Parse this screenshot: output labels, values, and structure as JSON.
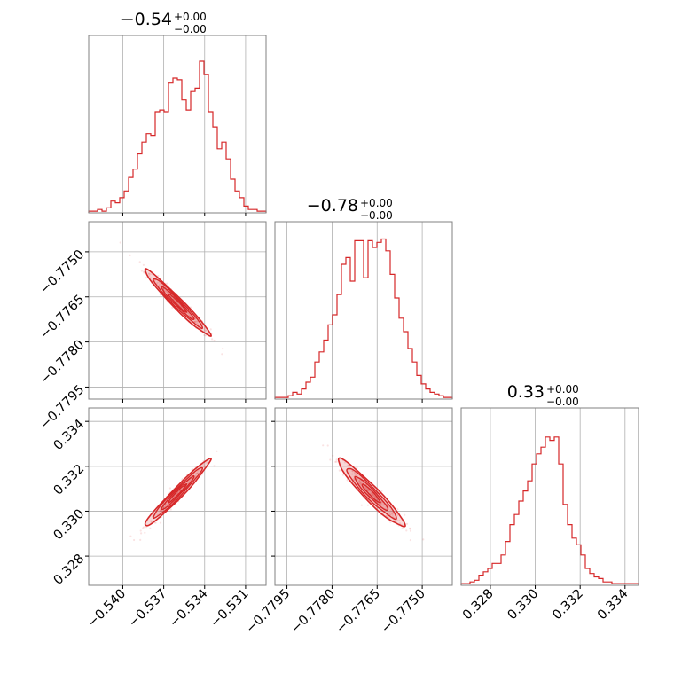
{
  "chart_data": {
    "type": "corner",
    "colors": {
      "series": "#d62728",
      "frame": "#808080",
      "grid": "#b0b0b0"
    },
    "params": [
      {
        "title_value": "−0.54",
        "title_sup": "+0.00",
        "title_sub": "−0.00",
        "range": [
          -0.5425,
          -0.5295
        ],
        "ticks": [
          -0.54,
          -0.537,
          -0.534,
          -0.531
        ],
        "tick_labels": [
          "−0.540",
          "−0.537",
          "−0.534",
          "−0.531"
        ],
        "hist": [
          0.01,
          0.01,
          0.02,
          0.01,
          0.03,
          0.07,
          0.06,
          0.09,
          0.13,
          0.21,
          0.26,
          0.35,
          0.42,
          0.47,
          0.46,
          0.6,
          0.61,
          0.6,
          0.77,
          0.8,
          0.79,
          0.67,
          0.61,
          0.72,
          0.74,
          0.9,
          0.82,
          0.6,
          0.51,
          0.38,
          0.42,
          0.32,
          0.2,
          0.13,
          0.09,
          0.04,
          0.02,
          0.02,
          0.01,
          0.01
        ]
      },
      {
        "title_value": "−0.78",
        "title_sup": "+0.00",
        "title_sub": "−0.00",
        "range": [
          -0.7799,
          -0.774
        ],
        "ticks": [
          -0.7795,
          -0.778,
          -0.7765,
          -0.775
        ],
        "tick_labels": [
          "−0.7795",
          "−0.7780",
          "−0.7765",
          "−0.7750"
        ],
        "hist": [
          0.01,
          0.01,
          0.01,
          0.02,
          0.04,
          0.03,
          0.06,
          0.1,
          0.13,
          0.22,
          0.28,
          0.35,
          0.44,
          0.5,
          0.62,
          0.8,
          0.84,
          0.7,
          0.94,
          0.94,
          0.72,
          0.94,
          0.9,
          0.93,
          0.95,
          0.88,
          0.74,
          0.6,
          0.48,
          0.4,
          0.3,
          0.22,
          0.14,
          0.09,
          0.06,
          0.04,
          0.03,
          0.02,
          0.01,
          0.01
        ]
      },
      {
        "title_value": "0.33",
        "title_sup": "+0.00",
        "title_sub": "−0.00",
        "range": [
          0.3267,
          0.3346
        ],
        "ticks": [
          0.328,
          0.33,
          0.332,
          0.334
        ],
        "tick_labels": [
          "0.328",
          "0.330",
          "0.332",
          "0.334"
        ],
        "hist": [
          0.01,
          0.01,
          0.02,
          0.03,
          0.06,
          0.08,
          0.1,
          0.13,
          0.13,
          0.18,
          0.26,
          0.36,
          0.42,
          0.5,
          0.56,
          0.62,
          0.72,
          0.78,
          0.82,
          0.88,
          0.86,
          0.88,
          0.72,
          0.48,
          0.36,
          0.28,
          0.24,
          0.18,
          0.1,
          0.07,
          0.05,
          0.04,
          0.02,
          0.02,
          0.01,
          0.01,
          0.01,
          0.01,
          0.01,
          0.01
        ]
      }
    ],
    "pairs": [
      {
        "x": 0,
        "y": 1,
        "means": [
          -0.536,
          -0.7767
        ],
        "sds": [
          0.0012,
          0.00055
        ],
        "rho": -0.975
      },
      {
        "x": 0,
        "y": 2,
        "means": [
          -0.536,
          0.3308
        ],
        "sds": [
          0.0012,
          0.00075
        ],
        "rho": 0.975
      },
      {
        "x": 1,
        "y": 2,
        "means": [
          -0.7767,
          0.3308
        ],
        "sds": [
          0.00055,
          0.00075
        ],
        "rho": -0.95
      }
    ]
  }
}
